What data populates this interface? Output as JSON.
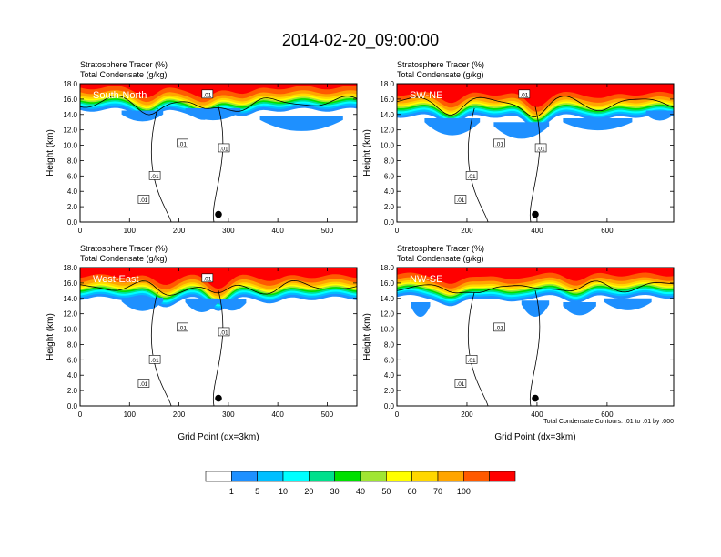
{
  "title": "2014-02-20_09:00:00",
  "colors": [
    "#ffffff",
    "#1e90ff",
    "#00bfff",
    "#00ffff",
    "#00e08c",
    "#00e000",
    "#a0e632",
    "#ffff00",
    "#ffd700",
    "#ffa500",
    "#ff5a00",
    "#ff0000"
  ],
  "chart_data": [
    {
      "type": "heatmap",
      "label": "South-North",
      "title_line1": "Stratosphere Tracer   (%)",
      "title_line2": "Total Condensate   (g/kg)",
      "ylabel": "Height (km)",
      "xlabel": "",
      "ylim": [
        0,
        18
      ],
      "xlim": [
        0,
        560
      ],
      "xticks": [
        0,
        100,
        200,
        300,
        400,
        500
      ],
      "yticks": [
        "0.0",
        "2.0",
        "4.0",
        "6.0",
        "8.0",
        "10.0",
        "12.0",
        "14.0",
        "16.0",
        "18.0"
      ],
      "contour_labels": [
        ".01",
        ".01",
        ".01",
        ".01",
        ".01"
      ],
      "marker_x": 280,
      "marker_y": 1.0
    },
    {
      "type": "heatmap",
      "label": "SW-NE",
      "title_line1": "Stratosphere Tracer   (%)",
      "title_line2": "Total Condensate   (g/kg)",
      "ylabel": "Height (km)",
      "xlabel": "",
      "ylim": [
        0,
        18
      ],
      "xlim": [
        0,
        790
      ],
      "xticks": [
        0,
        200,
        400,
        600
      ],
      "yticks": [
        "0.0",
        "2.0",
        "4.0",
        "6.0",
        "8.0",
        "10.0",
        "12.0",
        "14.0",
        "16.0",
        "18.0"
      ],
      "contour_labels": [
        ".01",
        ".01",
        ".01",
        ".01",
        ".01"
      ],
      "marker_x": 395,
      "marker_y": 1.0
    },
    {
      "type": "heatmap",
      "label": "West-East",
      "title_line1": "Stratosphere Tracer   (%)",
      "title_line2": "Total Condensate   (g/kg)",
      "ylabel": "Height (km)",
      "xlabel": "Grid Point (dx=3km)",
      "ylim": [
        0,
        18
      ],
      "xlim": [
        0,
        560
      ],
      "xticks": [
        0,
        100,
        200,
        300,
        400,
        500
      ],
      "yticks": [
        "0.0",
        "2.0",
        "4.0",
        "6.0",
        "8.0",
        "10.0",
        "12.0",
        "14.0",
        "16.0",
        "18.0"
      ],
      "contour_labels": [
        ".01",
        ".01",
        ".01",
        ".01",
        ".01"
      ],
      "marker_x": 280,
      "marker_y": 1.0
    },
    {
      "type": "heatmap",
      "label": "NW-SE",
      "title_line1": "Stratosphere Tracer   (%)",
      "title_line2": "Total Condensate   (g/kg)",
      "ylabel": "Height (km)",
      "xlabel": "Grid Point (dx=3km)",
      "ylim": [
        0,
        18
      ],
      "xlim": [
        0,
        790
      ],
      "xticks": [
        0,
        200,
        400,
        600
      ],
      "yticks": [
        "0.0",
        "2.0",
        "4.0",
        "6.0",
        "8.0",
        "10.0",
        "12.0",
        "14.0",
        "16.0",
        "18.0"
      ],
      "contour_labels": [
        ".01",
        ".01",
        ".01"
      ],
      "marker_x": 395,
      "marker_y": 1.0,
      "footnote": "Total Condensate Contours: .01 to .01 by .000"
    }
  ],
  "colorbar": {
    "labels": [
      "1",
      "5",
      "10",
      "20",
      "30",
      "40",
      "50",
      "60",
      "70",
      "100"
    ]
  }
}
